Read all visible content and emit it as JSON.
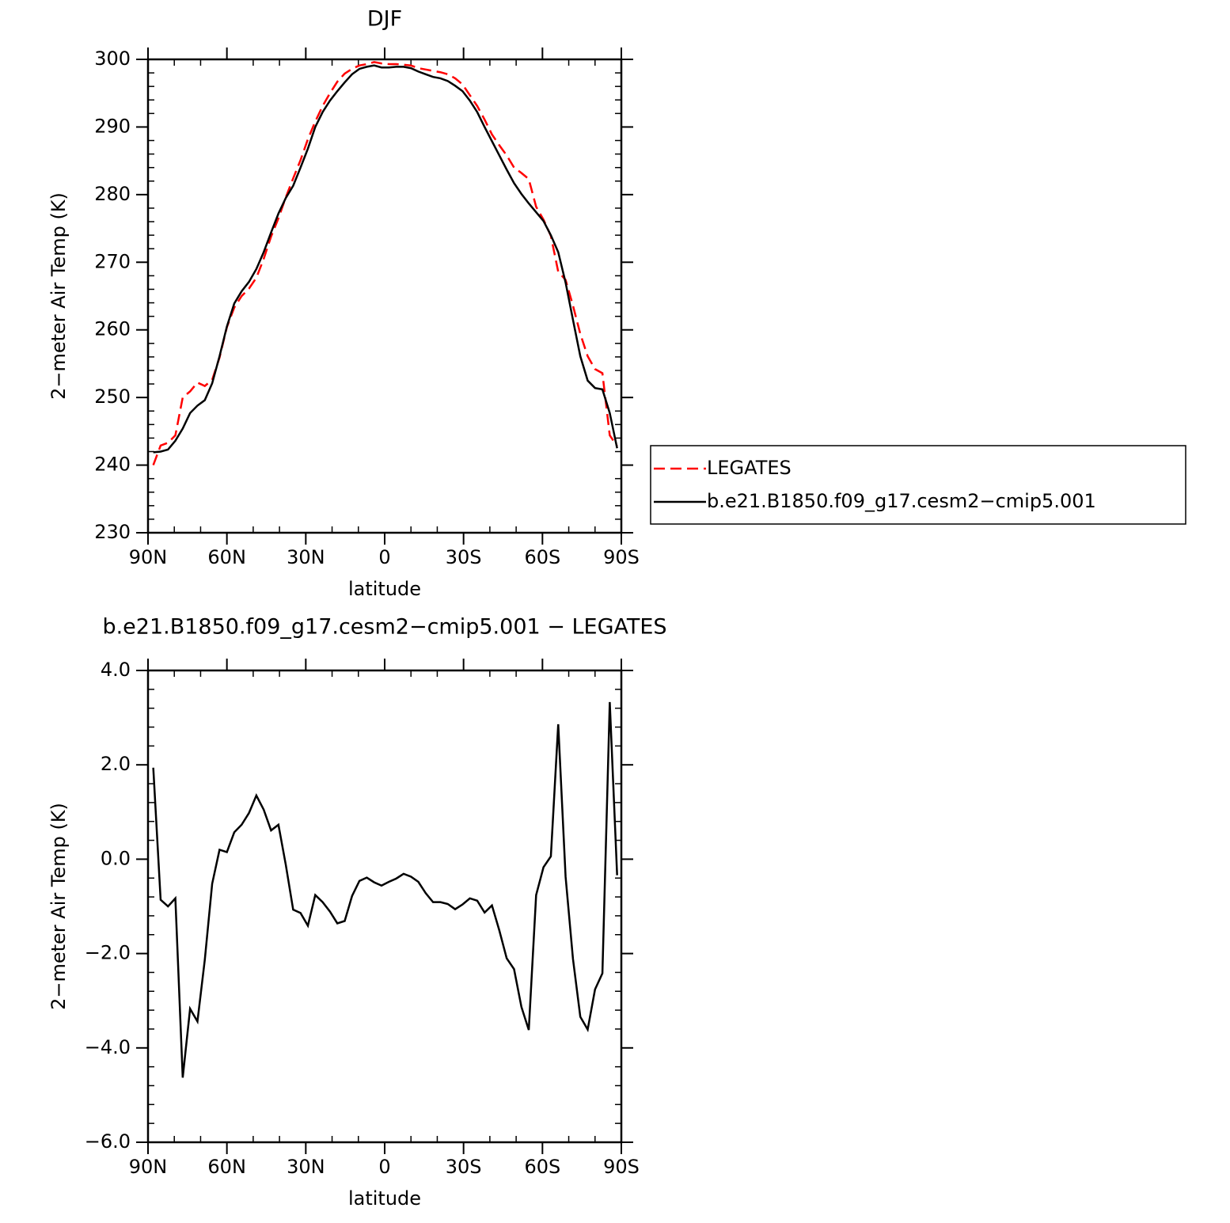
{
  "chart_data": [
    {
      "type": "line",
      "title": "DJF",
      "x_label": "latitude",
      "y_label": "2−meter Air Temp (K)",
      "x": [
        88,
        85.2,
        82.4,
        79.6,
        76.8,
        74,
        71.2,
        68.4,
        65.6,
        62.8,
        60,
        57.2,
        54.4,
        51.6,
        48.8,
        46,
        43.2,
        40.4,
        37.6,
        34.8,
        32,
        29.2,
        26.4,
        23.6,
        20.8,
        18,
        15.2,
        12.4,
        9.6,
        6.8,
        4,
        1.2,
        -1.6,
        -4.4,
        -7.2,
        -10,
        -12.8,
        -15.6,
        -18.4,
        -21.2,
        -24,
        -26.8,
        -29.6,
        -32.4,
        -35.2,
        -38,
        -40.8,
        -43.6,
        -46.4,
        -49.2,
        -52,
        -54.8,
        -57.6,
        -60.4,
        -63.2,
        -66,
        -68.8,
        -71.6,
        -74.4,
        -77.2,
        -80,
        -82.8,
        -85.6,
        -88.4
      ],
      "xlim": [
        90,
        -90
      ],
      "xticks": [
        {
          "value": 90,
          "label": "90N"
        },
        {
          "value": 60,
          "label": "60N"
        },
        {
          "value": 30,
          "label": "30N"
        },
        0,
        {
          "value": -30,
          "label": "30S"
        },
        {
          "value": -60,
          "label": "60S"
        },
        {
          "value": -90,
          "label": "90S"
        }
      ],
      "ylim": [
        230,
        300
      ],
      "yticks": [
        230,
        240,
        250,
        260,
        270,
        280,
        290,
        300
      ],
      "legend": "right",
      "series": [
        {
          "name": "LEGATES",
          "color": "#ff0000",
          "dashed": true,
          "values": [
            240.0,
            242.9,
            243.3,
            244.4,
            250.0,
            250.9,
            252.2,
            251.7,
            252.6,
            255.9,
            260.4,
            263.3,
            265.0,
            266.1,
            267.7,
            270.5,
            273.8,
            276.5,
            279.6,
            282.4,
            285.1,
            288.2,
            290.8,
            293.1,
            295.0,
            296.7,
            297.9,
            298.6,
            299.1,
            299.3,
            299.6,
            299.4,
            299.3,
            299.3,
            299.2,
            299.1,
            298.7,
            298.5,
            298.3,
            298.1,
            297.8,
            297.2,
            296.3,
            294.7,
            293.1,
            291.1,
            288.9,
            287.3,
            285.8,
            284.0,
            283.2,
            282.3,
            278.2,
            276.3,
            273.9,
            268.6,
            267.4,
            263.6,
            259.4,
            256.1,
            254.2,
            253.6,
            244.4,
            242.8
          ]
        },
        {
          "name": "b.e21.B1850.f09_g17.cesm2−cmip5.001",
          "color": "#000000",
          "dashed": false,
          "values": [
            241.9,
            242.0,
            242.3,
            243.6,
            245.4,
            247.7,
            248.8,
            249.6,
            252.1,
            256.1,
            260.5,
            263.9,
            265.7,
            267.1,
            269.0,
            271.5,
            274.4,
            277.2,
            279.5,
            281.3,
            284.0,
            286.8,
            290.0,
            292.2,
            293.9,
            295.3,
            296.6,
            297.8,
            298.6,
            298.9,
            299.1,
            298.8,
            298.8,
            298.9,
            298.9,
            298.7,
            298.2,
            297.8,
            297.4,
            297.2,
            296.8,
            296.1,
            295.3,
            293.9,
            292.2,
            290.0,
            287.9,
            285.8,
            283.7,
            281.7,
            280.1,
            278.7,
            277.4,
            276.1,
            274.0,
            271.5,
            267.0,
            261.5,
            256.1,
            252.5,
            251.4,
            251.2,
            247.7,
            242.5
          ]
        }
      ]
    },
    {
      "type": "line",
      "title": "b.e21.B1850.f09_g17.cesm2−cmip5.001  −  LEGATES",
      "x_label": "latitude",
      "y_label": "2−meter Air Temp (K)",
      "x": [
        88,
        85.2,
        82.4,
        79.6,
        76.8,
        74,
        71.2,
        68.4,
        65.6,
        62.8,
        60,
        57.2,
        54.4,
        51.6,
        48.8,
        46,
        43.2,
        40.4,
        37.6,
        34.8,
        32,
        29.2,
        26.4,
        23.6,
        20.8,
        18,
        15.2,
        12.4,
        9.6,
        6.8,
        4,
        1.2,
        -1.6,
        -4.4,
        -7.2,
        -10,
        -12.8,
        -15.6,
        -18.4,
        -21.2,
        -24,
        -26.8,
        -29.6,
        -32.4,
        -35.2,
        -38,
        -40.8,
        -43.6,
        -46.4,
        -49.2,
        -52,
        -54.8,
        -57.6,
        -60.4,
        -63.2,
        -66,
        -68.8,
        -71.6,
        -74.4,
        -77.2,
        -80,
        -82.8,
        -85.6,
        -88.4
      ],
      "xlim": [
        90,
        -90
      ],
      "xticks": [
        {
          "value": 90,
          "label": "90N"
        },
        {
          "value": 60,
          "label": "60N"
        },
        {
          "value": 30,
          "label": "30N"
        },
        0,
        {
          "value": -30,
          "label": "30S"
        },
        {
          "value": -60,
          "label": "60S"
        },
        {
          "value": -90,
          "label": "90S"
        }
      ],
      "ylim": [
        -6,
        4
      ],
      "yticks": [
        {
          "value": -6,
          "label": "−6.0"
        },
        {
          "value": -4,
          "label": "−4.0"
        },
        {
          "value": -2,
          "label": "−2.0"
        },
        {
          "value": 0,
          "label": "0.0"
        },
        {
          "value": 2,
          "label": "2.0"
        },
        {
          "value": 4,
          "label": "4.0"
        }
      ],
      "color": "#000000",
      "values": [
        1.94,
        -0.86,
        -1.0,
        -0.83,
        -4.63,
        -3.17,
        -3.44,
        -2.13,
        -0.52,
        0.2,
        0.15,
        0.57,
        0.73,
        0.98,
        1.35,
        1.05,
        0.61,
        0.73,
        -0.12,
        -1.07,
        -1.14,
        -1.41,
        -0.76,
        -0.91,
        -1.11,
        -1.36,
        -1.31,
        -0.78,
        -0.46,
        -0.39,
        -0.49,
        -0.56,
        -0.48,
        -0.41,
        -0.31,
        -0.37,
        -0.48,
        -0.72,
        -0.91,
        -0.91,
        -0.95,
        -1.06,
        -0.96,
        -0.83,
        -0.88,
        -1.13,
        -0.98,
        -1.51,
        -2.1,
        -2.33,
        -3.13,
        -3.62,
        -0.76,
        -0.17,
        0.06,
        2.86,
        -0.37,
        -2.11,
        -3.34,
        -3.61,
        -2.76,
        -2.42,
        3.33,
        -0.34
      ]
    }
  ]
}
